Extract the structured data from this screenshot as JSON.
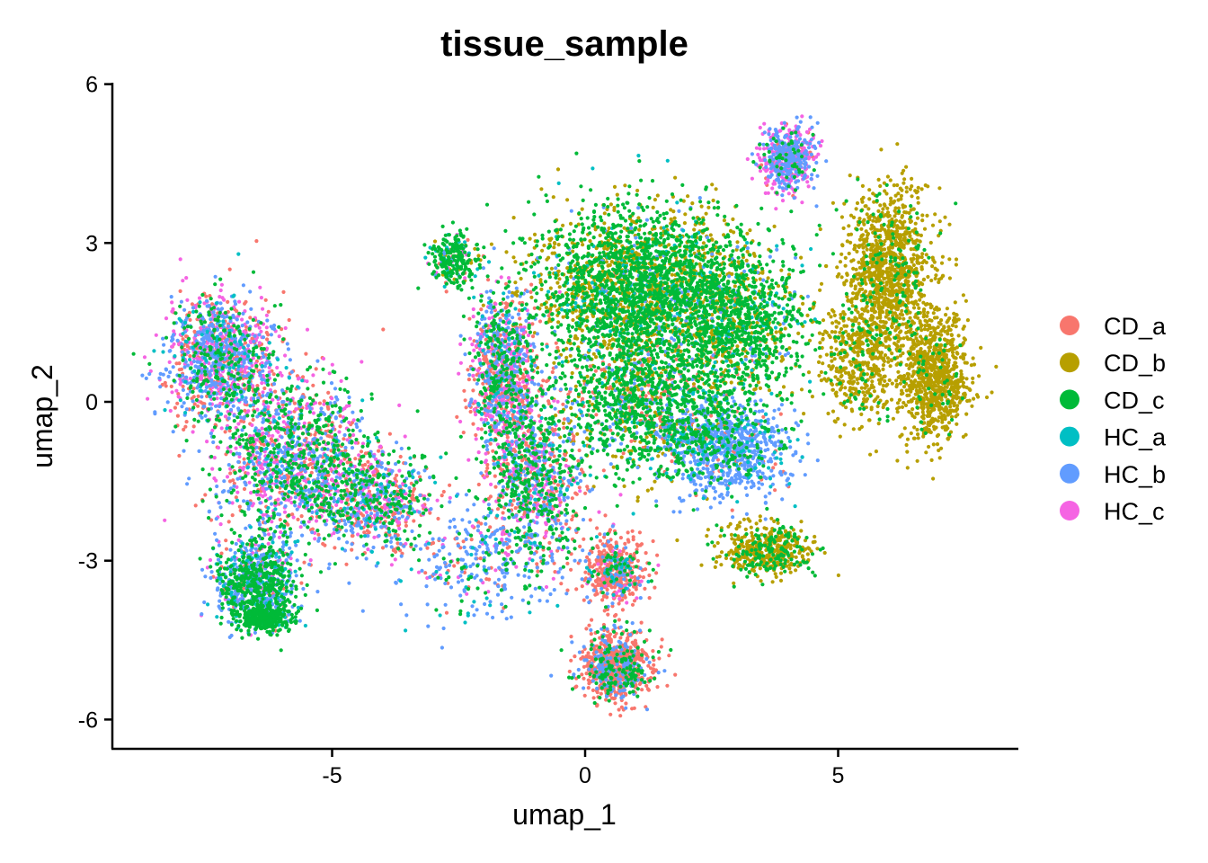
{
  "chart_data": {
    "type": "scatter",
    "title": "tissue_sample",
    "xlabel": "umap_1",
    "ylabel": "umap_2",
    "xlim": [
      -9.0,
      8.6
    ],
    "ylim": [
      -6.6,
      6.0
    ],
    "x_ticks": [
      {
        "value": -5,
        "label": "-5"
      },
      {
        "value": 0,
        "label": "0"
      },
      {
        "value": 5,
        "label": "5"
      }
    ],
    "y_ticks": [
      {
        "value": -6,
        "label": "-6"
      },
      {
        "value": -3,
        "label": "-3"
      },
      {
        "value": 0,
        "label": "0"
      },
      {
        "value": 3,
        "label": "3"
      },
      {
        "value": 6,
        "label": "6"
      }
    ],
    "grid": false,
    "legend_position": "right",
    "series": [
      {
        "name": "CD_a",
        "color": "#F8766D"
      },
      {
        "name": "CD_b",
        "color": "#B79F00"
      },
      {
        "name": "CD_c",
        "color": "#00BA38"
      },
      {
        "name": "HC_a",
        "color": "#00BFC4"
      },
      {
        "name": "HC_b",
        "color": "#619CFF"
      },
      {
        "name": "HC_c",
        "color": "#F564E3"
      }
    ],
    "clusters": [
      {
        "cx": -7.2,
        "cy": 0.8,
        "sx": 0.7,
        "sy": 0.8,
        "n": 1300,
        "w": [
          0.2,
          0.0,
          0.15,
          0.05,
          0.3,
          0.3
        ]
      },
      {
        "cx": -5.8,
        "cy": -1.0,
        "sx": 1.0,
        "sy": 1.0,
        "n": 1400,
        "w": [
          0.2,
          0.0,
          0.3,
          0.05,
          0.25,
          0.2
        ]
      },
      {
        "cx": -4.2,
        "cy": -1.8,
        "sx": 0.8,
        "sy": 0.6,
        "n": 800,
        "w": [
          0.25,
          0.0,
          0.3,
          0.05,
          0.2,
          0.2
        ]
      },
      {
        "cx": -6.5,
        "cy": -3.4,
        "sx": 0.55,
        "sy": 0.6,
        "n": 900,
        "w": [
          0.05,
          0.0,
          0.45,
          0.1,
          0.35,
          0.05
        ]
      },
      {
        "cx": -6.4,
        "cy": -4.1,
        "sx": 0.4,
        "sy": 0.15,
        "n": 300,
        "w": [
          0.0,
          0.0,
          0.9,
          0.1,
          0.0,
          0.0
        ]
      },
      {
        "cx": -2.6,
        "cy": 2.7,
        "sx": 0.3,
        "sy": 0.35,
        "n": 260,
        "w": [
          0.05,
          0.1,
          0.7,
          0.05,
          0.05,
          0.05
        ]
      },
      {
        "cx": -1.6,
        "cy": 0.5,
        "sx": 0.45,
        "sy": 1.0,
        "n": 1100,
        "w": [
          0.3,
          0.0,
          0.2,
          0.05,
          0.25,
          0.2
        ]
      },
      {
        "cx": -1.0,
        "cy": -1.5,
        "sx": 0.6,
        "sy": 0.9,
        "n": 900,
        "w": [
          0.25,
          0.0,
          0.3,
          0.05,
          0.25,
          0.15
        ]
      },
      {
        "cx": 1.0,
        "cy": 2.2,
        "sx": 1.4,
        "sy": 1.0,
        "n": 2600,
        "w": [
          0.0,
          0.35,
          0.55,
          0.05,
          0.05,
          0.0
        ]
      },
      {
        "cx": 1.2,
        "cy": 0.0,
        "sx": 1.2,
        "sy": 0.9,
        "n": 1500,
        "w": [
          0.1,
          0.15,
          0.6,
          0.05,
          0.1,
          0.0
        ]
      },
      {
        "cx": 3.0,
        "cy": 1.5,
        "sx": 0.9,
        "sy": 1.0,
        "n": 1200,
        "w": [
          0.0,
          0.25,
          0.65,
          0.05,
          0.05,
          0.0
        ]
      },
      {
        "cx": 2.8,
        "cy": -0.9,
        "sx": 0.8,
        "sy": 0.6,
        "n": 900,
        "w": [
          0.05,
          0.0,
          0.15,
          0.1,
          0.7,
          0.0
        ]
      },
      {
        "cx": 4.0,
        "cy": 4.6,
        "sx": 0.35,
        "sy": 0.4,
        "n": 600,
        "w": [
          0.05,
          0.0,
          0.05,
          0.0,
          0.4,
          0.5
        ]
      },
      {
        "cx": 6.0,
        "cy": 2.5,
        "sx": 0.6,
        "sy": 1.0,
        "n": 1100,
        "w": [
          0.0,
          0.9,
          0.1,
          0.0,
          0.0,
          0.0
        ]
      },
      {
        "cx": 6.9,
        "cy": 0.5,
        "sx": 0.45,
        "sy": 0.8,
        "n": 900,
        "w": [
          0.0,
          0.95,
          0.05,
          0.0,
          0.0,
          0.0
        ]
      },
      {
        "cx": 5.4,
        "cy": 0.8,
        "sx": 0.5,
        "sy": 0.8,
        "n": 500,
        "w": [
          0.0,
          0.9,
          0.1,
          0.0,
          0.0,
          0.0
        ]
      },
      {
        "cx": 3.6,
        "cy": -2.8,
        "sx": 0.6,
        "sy": 0.3,
        "n": 500,
        "w": [
          0.0,
          0.7,
          0.3,
          0.0,
          0.0,
          0.0
        ]
      },
      {
        "cx": 0.6,
        "cy": -3.2,
        "sx": 0.4,
        "sy": 0.4,
        "n": 500,
        "w": [
          0.7,
          0.0,
          0.1,
          0.05,
          0.1,
          0.05
        ]
      },
      {
        "cx": 0.6,
        "cy": -5.0,
        "sx": 0.45,
        "sy": 0.45,
        "n": 900,
        "w": [
          0.65,
          0.0,
          0.15,
          0.0,
          0.2,
          0.0
        ]
      },
      {
        "cx": -2.0,
        "cy": -3.0,
        "sx": 1.2,
        "sy": 0.7,
        "n": 400,
        "w": [
          0.15,
          0.0,
          0.15,
          0.1,
          0.5,
          0.1
        ]
      }
    ]
  }
}
